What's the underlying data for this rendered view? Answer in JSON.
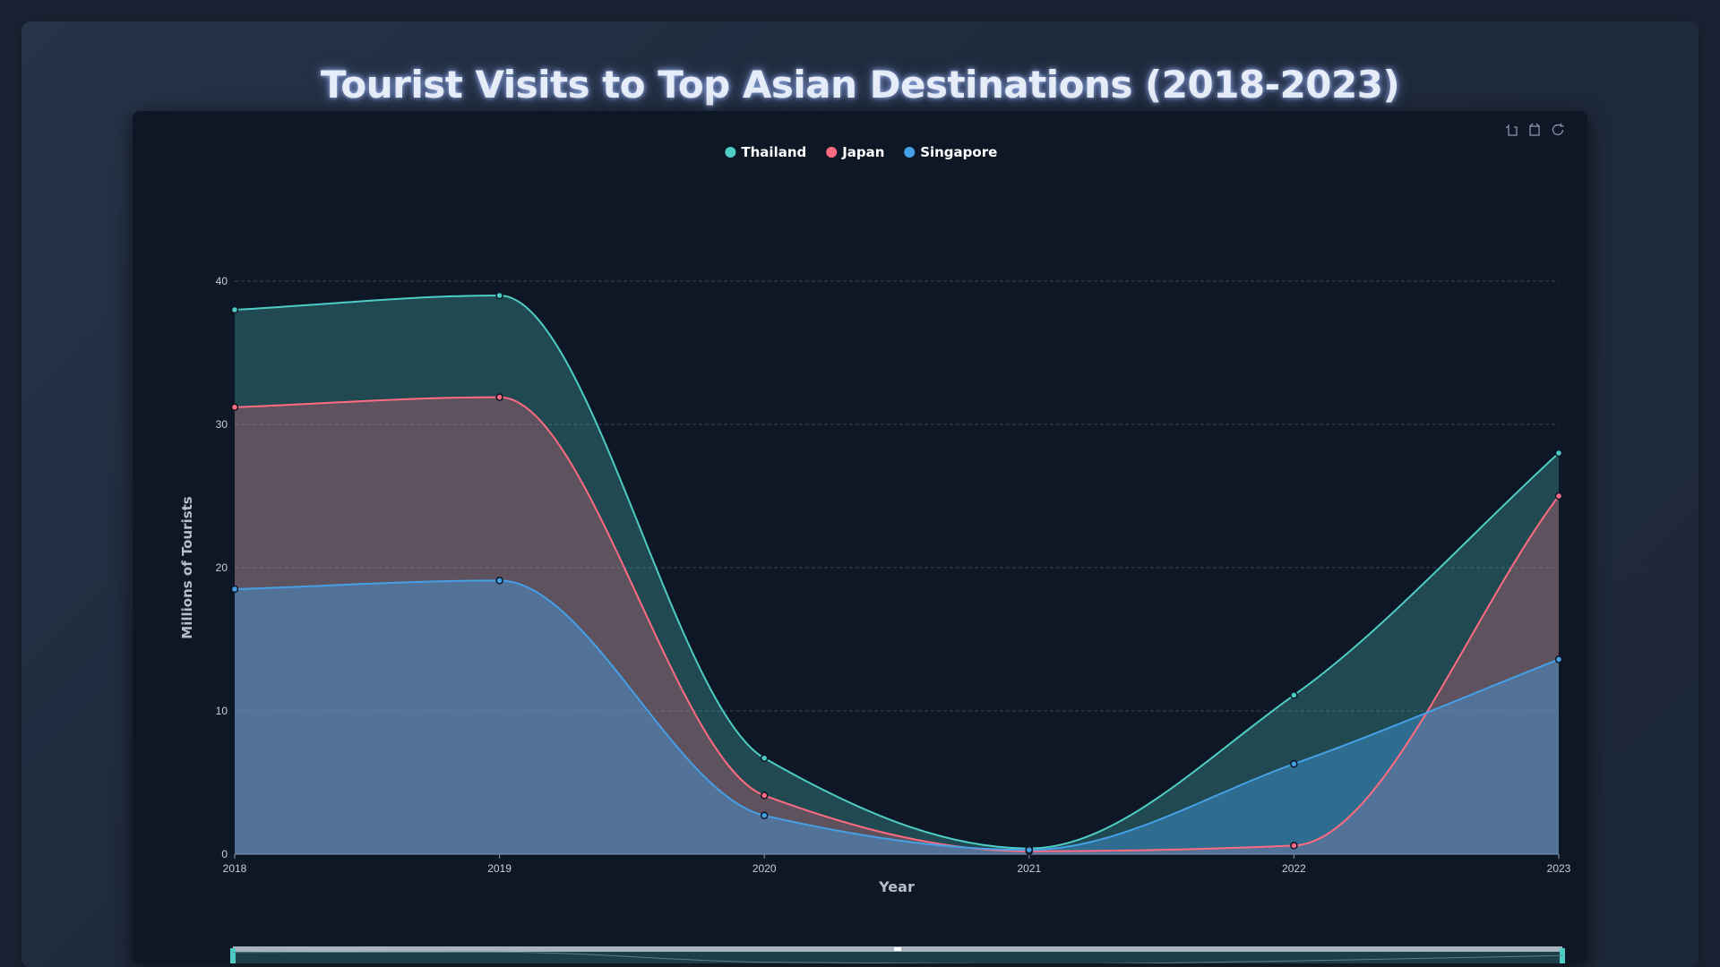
{
  "page": {
    "title": "Tourist Visits to Top Asian Destinations (2018-2023)"
  },
  "toolbar": {
    "icons": [
      "zoom-icon",
      "zoom-reset-icon",
      "restore-icon"
    ]
  },
  "colors": {
    "Thailand": "#4ecdc4",
    "Japan": "#ff6b81",
    "Singapore": "#45a0e6",
    "gridline": "#3a4558",
    "axis_text": "#c8cfdb",
    "legend_text": "#ffffff"
  },
  "chart_data": {
    "type": "area",
    "title": "Tourist Visits to Top Asian Destinations (2018-2023)",
    "xlabel": "Year",
    "ylabel": "Millions of Tourists",
    "categories": [
      "2018",
      "2019",
      "2020",
      "2021",
      "2022",
      "2023"
    ],
    "ylim": [
      0,
      40
    ],
    "yticks": [
      0,
      10,
      20,
      30,
      40
    ],
    "grid": true,
    "legend_position": "top-center",
    "series": [
      {
        "name": "Thailand",
        "values": [
          38.0,
          39.0,
          6.7,
          0.4,
          11.1,
          28.0
        ]
      },
      {
        "name": "Japan",
        "values": [
          31.2,
          31.9,
          4.1,
          0.2,
          0.6,
          25.0
        ]
      },
      {
        "name": "Singapore",
        "values": [
          18.5,
          19.1,
          2.7,
          0.3,
          6.3,
          13.6
        ]
      }
    ]
  }
}
